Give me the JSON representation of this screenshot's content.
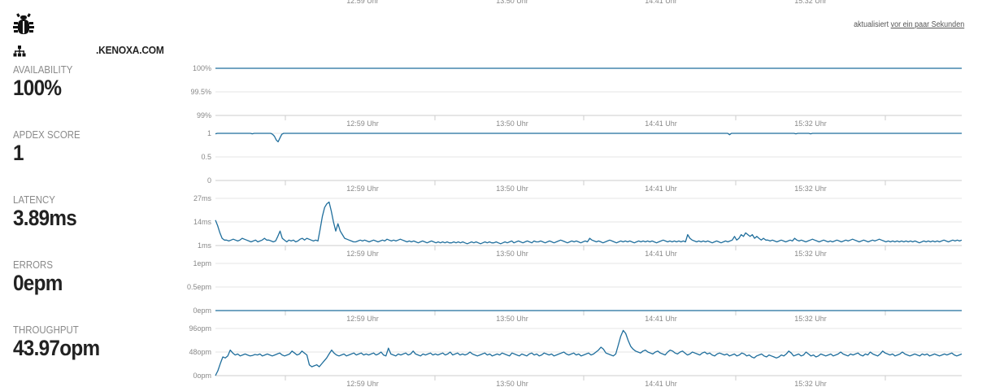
{
  "header": {
    "site_name": ".KENOXA.COM",
    "updated_prefix": "aktualisiert ",
    "updated_link": "vor ein paar Sekunden",
    "bug_icon": "bug-icon",
    "site_icon": "sitemap-icon"
  },
  "metrics": [
    {
      "label": "AVAILABILITY",
      "value": "100%"
    },
    {
      "label": "APDEX SCORE",
      "value": "1"
    },
    {
      "label": "LATENCY",
      "value": "3.89ms"
    },
    {
      "label": "ERRORS",
      "value": "0epm"
    },
    {
      "label": "THROUGHPUT",
      "value": "43.97opm"
    }
  ],
  "colors": {
    "line": "#1f6e9c",
    "grid": "#e6e6e6",
    "axis": "#cccccc",
    "tick_text": "#888888"
  },
  "chart_data": [
    {
      "type": "line",
      "name": "availability",
      "x_tick_labels": [
        "12:59 Uhr",
        "13:50 Uhr",
        "14:41 Uhr",
        "15:32 Uhr"
      ],
      "y_tick_labels": [
        "100%",
        "99.5%",
        "99%"
      ],
      "ylim": [
        99,
        100
      ],
      "y_values": [
        100,
        100
      ],
      "grid": true
    },
    {
      "type": "line",
      "name": "apdex",
      "x_tick_labels": [
        "12:59 Uhr",
        "13:50 Uhr",
        "14:41 Uhr",
        "15:32 Uhr"
      ],
      "y_tick_labels": [
        "1",
        "0.5",
        "0"
      ],
      "ylim": [
        0,
        1
      ],
      "y_values": [
        0.99,
        1,
        1,
        1,
        1,
        1,
        1,
        1,
        1,
        1,
        1,
        1,
        1,
        1,
        1,
        1,
        1,
        1,
        1,
        1,
        0.99,
        1,
        1,
        1,
        1,
        1,
        1,
        1,
        1,
        1,
        1,
        0.98,
        0.94,
        0.86,
        0.82,
        0.9,
        0.98,
        1,
        1,
        1,
        1,
        1,
        1,
        1,
        1,
        1,
        1,
        1,
        1,
        1,
        1,
        1,
        1,
        1,
        1,
        1,
        1,
        1,
        1,
        1,
        1,
        1,
        1,
        1,
        1,
        1,
        1,
        1,
        1,
        1,
        1,
        1,
        1,
        1,
        1,
        1,
        1,
        1,
        1,
        1,
        1,
        1,
        1,
        1,
        1,
        1,
        1,
        1,
        1,
        1,
        1,
        1,
        1,
        1,
        1,
        1,
        1,
        1,
        1,
        1,
        1,
        1,
        1,
        1,
        1,
        1,
        1,
        1,
        1,
        1,
        1,
        1,
        1,
        1,
        1,
        1,
        1,
        1,
        1,
        1,
        1,
        1,
        1,
        1,
        1,
        1,
        1,
        1,
        1,
        1,
        1,
        1,
        1,
        1,
        1,
        1,
        1,
        1,
        1,
        1,
        1,
        1,
        1,
        1,
        1,
        1,
        1,
        1,
        1,
        1,
        1,
        1,
        1,
        1,
        1,
        1,
        1,
        1,
        1,
        1,
        1,
        1,
        1,
        1,
        1,
        1,
        1,
        1,
        1,
        1,
        1,
        1,
        1,
        1,
        1,
        1,
        1,
        1,
        1,
        1,
        1,
        1,
        1,
        1,
        1,
        1,
        1,
        1,
        1,
        1,
        1,
        1,
        1,
        1,
        1,
        1,
        1,
        1,
        1,
        1,
        1,
        1,
        1,
        1,
        1,
        1,
        1,
        1,
        1,
        1,
        1,
        1,
        1,
        1,
        1,
        1,
        1,
        1,
        1,
        1,
        1,
        1,
        1,
        1,
        1,
        1,
        1,
        1,
        1,
        1,
        1,
        1,
        1,
        1,
        1,
        1,
        1,
        1,
        1,
        1,
        1,
        1,
        1,
        1,
        1,
        1,
        1,
        1,
        1,
        1,
        1,
        1,
        1,
        1,
        1,
        1,
        1,
        1,
        1,
        1,
        1,
        1,
        1,
        1,
        1,
        1,
        1,
        1,
        1,
        1,
        1,
        1,
        1,
        1,
        1,
        1,
        1,
        1,
        1,
        0.97,
        1,
        1,
        1,
        1,
        1,
        1,
        1,
        1,
        1,
        1,
        1,
        1,
        1,
        1,
        1,
        1,
        1,
        1,
        1,
        1,
        1,
        1,
        1,
        1,
        1,
        1,
        1,
        1,
        1,
        1,
        1,
        1,
        1,
        1,
        1,
        0.99,
        1,
        1,
        1,
        1,
        1,
        1,
        1,
        0.99,
        1,
        1,
        1,
        1,
        1,
        1,
        1,
        1,
        1,
        1,
        1,
        1,
        1,
        1,
        1,
        1,
        1,
        1,
        1,
        1,
        1,
        1,
        1,
        1,
        1,
        1,
        1,
        1,
        1,
        1,
        1,
        1,
        1,
        1,
        1,
        1,
        1,
        1,
        1,
        1,
        1,
        1,
        1,
        1,
        1,
        1,
        1,
        1,
        1,
        1,
        1,
        1,
        1,
        1,
        1,
        1,
        1,
        1,
        1,
        1,
        1,
        1,
        1,
        1,
        1,
        1,
        1,
        1,
        1,
        1,
        1,
        1,
        1,
        1,
        1,
        1,
        1,
        1,
        1,
        1,
        1,
        1
      ],
      "grid": true
    },
    {
      "type": "line",
      "name": "latency",
      "x_tick_labels": [
        "12:59 Uhr",
        "13:50 Uhr",
        "14:41 Uhr",
        "15:32 Uhr"
      ],
      "y_tick_labels": [
        "27ms",
        "14ms",
        "1ms"
      ],
      "ylim": [
        1,
        27
      ],
      "y_values": [
        15,
        12,
        8,
        5,
        4,
        4,
        3.5,
        4,
        4.5,
        4,
        3.5,
        4,
        5,
        4.5,
        4,
        3.5,
        3,
        3.5,
        4,
        3,
        3.5,
        4,
        5,
        4,
        4,
        3.5,
        3,
        3.5,
        6,
        9,
        5,
        4,
        3,
        4,
        3.5,
        4,
        3,
        3.5,
        4.5,
        5,
        4,
        5,
        4.5,
        4,
        3.5,
        4,
        3.5,
        10,
        17,
        22,
        24,
        25,
        20,
        14,
        9,
        13,
        9,
        7,
        5,
        4.5,
        4,
        3.5,
        3,
        3,
        3.5,
        4,
        3.5,
        4,
        3.5,
        3,
        3.5,
        4,
        3.5,
        3,
        3.5,
        4,
        3.5,
        4.5,
        4,
        3.5,
        4,
        3.5,
        4,
        4.5,
        4,
        3.5,
        3,
        3.5,
        3,
        3.5,
        3,
        2.5,
        3,
        3.5,
        3,
        2.5,
        3,
        3.5,
        3,
        2.5,
        3,
        2.5,
        3,
        2.5,
        3,
        2.5,
        2.5,
        3,
        2.5,
        3,
        2.5,
        3,
        2.5,
        2,
        2.5,
        3,
        2.5,
        3,
        2.5,
        2,
        2.5,
        3,
        2.5,
        3,
        2.5,
        2.5,
        3,
        2.5,
        2,
        2.5,
        3,
        2.5,
        3,
        3.5,
        2.5,
        3,
        3.5,
        3,
        2.5,
        3,
        3.5,
        3,
        2.5,
        3.5,
        3,
        3,
        3.5,
        3,
        2.5,
        3,
        3.5,
        3,
        2.5,
        3,
        3.5,
        4,
        3.5,
        3,
        2.5,
        3,
        3.5,
        3,
        3.5,
        3,
        2.5,
        3,
        3.5,
        3,
        5,
        4,
        3.5,
        3,
        3.5,
        3,
        2.5,
        3,
        3.5,
        4,
        3.5,
        3,
        2.5,
        3,
        3.5,
        3,
        3.5,
        3,
        3.5,
        3,
        2.5,
        3,
        3.5,
        3,
        3.5,
        3,
        3.5,
        3,
        3.5,
        3,
        2.5,
        3,
        3.5,
        4,
        3.5,
        3,
        3.5,
        3,
        3.5,
        3,
        3.5,
        3,
        3.5,
        3,
        7,
        5,
        4,
        3.5,
        3,
        3.5,
        3,
        3.5,
        3,
        3.5,
        3,
        2.5,
        3,
        3.5,
        3,
        2.5,
        3,
        3.5,
        3,
        3.5,
        4,
        6,
        4,
        5,
        7,
        6,
        8,
        7,
        6,
        7,
        5,
        6,
        5,
        4,
        5,
        4,
        4,
        3.5,
        4,
        3.5,
        3,
        3.5,
        4,
        3.5,
        3,
        3.5,
        4,
        3.5,
        5,
        4,
        3.5,
        4,
        3.5,
        3,
        3.5,
        4,
        4.5,
        4,
        3.5,
        3,
        3.5,
        4,
        3.5,
        3,
        3.5,
        3,
        3.5,
        4,
        3.5,
        3,
        3.5,
        4,
        3.5,
        4,
        4.5,
        4,
        3.5,
        3,
        3.5,
        4,
        3.5,
        3,
        3.5,
        4,
        3.5,
        4,
        4.5,
        4,
        3.5,
        3,
        3.5,
        3,
        3.5,
        3,
        3.5,
        3,
        3.5,
        3,
        3.5,
        3,
        3.5,
        3,
        3.5,
        3,
        2.5,
        3,
        3.5,
        3,
        3.5,
        3,
        3.5,
        3,
        3.5,
        3,
        3.5,
        4,
        3.5,
        3,
        3.5,
        4,
        3.5,
        4,
        3.5,
        4
      ],
      "grid": true
    },
    {
      "type": "line",
      "name": "errors",
      "x_tick_labels": [
        "12:59 Uhr",
        "13:50 Uhr",
        "14:41 Uhr",
        "15:32 Uhr"
      ],
      "y_tick_labels": [
        "1epm",
        "0.5epm",
        "0epm"
      ],
      "ylim": [
        0,
        1
      ],
      "y_values": [
        0,
        0
      ],
      "grid": true
    },
    {
      "type": "line",
      "name": "throughput",
      "x_tick_labels": [
        "12:59 Uhr",
        "13:50 Uhr",
        "14:41 Uhr",
        "15:32 Uhr"
      ],
      "y_tick_labels": [
        "96opm",
        "48opm",
        "0opm"
      ],
      "ylim": [
        0,
        96
      ],
      "y_values": [
        0,
        10,
        25,
        38,
        36,
        40,
        52,
        46,
        42,
        44,
        40,
        42,
        44,
        42,
        40,
        41,
        43,
        42,
        44,
        40,
        42,
        44,
        42,
        40,
        42,
        44,
        46,
        42,
        40,
        42,
        44,
        50,
        46,
        42,
        44,
        50,
        46,
        42,
        22,
        18,
        20,
        22,
        18,
        24,
        30,
        36,
        44,
        52,
        46,
        42,
        40,
        42,
        44,
        40,
        42,
        44,
        46,
        42,
        44,
        46,
        42,
        44,
        42,
        44,
        46,
        42,
        44,
        48,
        42,
        40,
        56,
        44,
        42,
        40,
        44,
        42,
        44,
        46,
        42,
        44,
        50,
        44,
        42,
        40,
        44,
        42,
        44,
        46,
        42,
        44,
        42,
        44,
        46,
        42,
        44,
        48,
        42,
        44,
        46,
        42,
        44,
        42,
        44,
        48,
        44,
        42,
        40,
        42,
        44,
        46,
        42,
        44,
        40,
        42,
        44,
        42,
        46,
        44,
        42,
        40,
        46,
        44,
        42,
        40,
        44,
        42,
        40,
        44,
        46,
        42,
        44,
        40,
        42,
        46,
        44,
        42,
        44,
        40,
        42,
        44,
        46,
        48,
        44,
        42,
        44,
        46,
        42,
        44,
        40,
        42,
        44,
        46,
        42,
        44,
        48,
        52,
        58,
        54,
        46,
        44,
        42,
        40,
        44,
        62,
        80,
        92,
        86,
        72,
        60,
        54,
        50,
        48,
        46,
        50,
        52,
        48,
        46,
        44,
        48,
        50,
        46,
        44,
        42,
        48,
        52,
        50,
        46,
        44,
        48,
        50,
        46,
        42,
        44,
        48,
        46,
        44,
        42,
        46,
        48,
        44,
        46,
        42,
        40,
        44,
        46,
        44,
        42,
        44,
        40,
        42,
        44,
        40,
        42,
        46,
        44,
        40,
        42,
        38,
        36,
        40,
        42,
        44,
        40,
        38,
        42,
        40,
        38,
        36,
        38,
        42,
        40,
        44,
        50,
        46,
        40,
        42,
        44,
        40,
        42,
        48,
        44,
        40,
        42,
        38,
        40,
        44,
        42,
        40,
        42,
        44,
        40,
        42,
        44,
        48,
        44,
        42,
        40,
        44,
        42,
        44,
        46,
        42,
        40,
        44,
        42,
        48,
        44,
        42,
        40,
        44,
        50,
        46,
        44,
        42,
        44,
        40,
        42,
        44,
        48,
        44,
        42,
        40,
        42,
        44,
        42,
        40,
        44,
        42,
        44,
        40,
        42,
        44,
        42,
        40,
        42,
        44,
        42,
        44,
        46,
        42,
        40,
        42,
        44
      ],
      "grid": true
    }
  ]
}
